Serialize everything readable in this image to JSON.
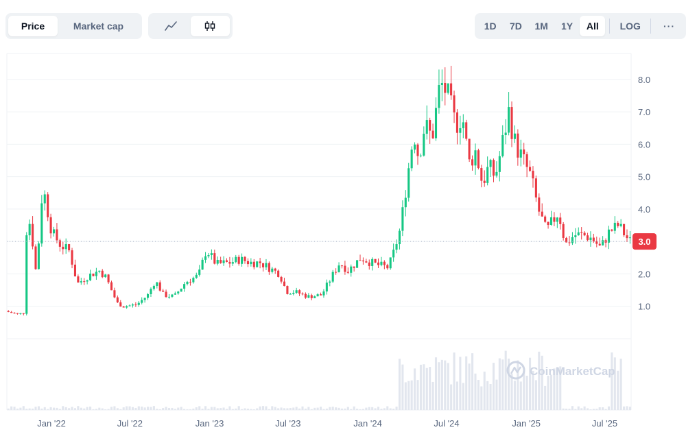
{
  "controls": {
    "metric_tabs": [
      {
        "label": "Price",
        "active": true
      },
      {
        "label": "Market cap",
        "active": false
      }
    ],
    "chart_types": [
      {
        "icon": "line-chart-icon",
        "active": false
      },
      {
        "icon": "candlestick-icon",
        "active": true
      }
    ],
    "ranges": [
      {
        "label": "1D",
        "active": false
      },
      {
        "label": "7D",
        "active": false
      },
      {
        "label": "1M",
        "active": false
      },
      {
        "label": "1Y",
        "active": false
      },
      {
        "label": "All",
        "active": true
      }
    ],
    "log_label": "LOG",
    "more_label": "···"
  },
  "watermark": "CoinMarketCap",
  "colors": {
    "up": "#16c784",
    "down": "#ea3943",
    "grid": "#eff2f5",
    "volume": "#e2e6ee",
    "text": "#58667e"
  },
  "chart_data": {
    "type": "candlestick",
    "current_price": 3.0,
    "current_price_label": "3.0",
    "y_ticks": [
      "1.0",
      "2.0",
      "3.0",
      "4.0",
      "5.0",
      "6.0",
      "7.0",
      "8.0"
    ],
    "ylim": [
      0,
      8.8
    ],
    "x_ticks": [
      {
        "date": "2022-01-01",
        "label": "Jan '22"
      },
      {
        "date": "2022-07-01",
        "label": "Jul '22"
      },
      {
        "date": "2023-01-01",
        "label": "Jan '23"
      },
      {
        "date": "2023-07-01",
        "label": "Jul '23"
      },
      {
        "date": "2024-01-01",
        "label": "Jan '24"
      },
      {
        "date": "2024-07-01",
        "label": "Jul '24"
      },
      {
        "date": "2025-01-01",
        "label": "Jan '25"
      },
      {
        "date": "2025-07-01",
        "label": "Jul '25"
      }
    ],
    "x_start": "2021-09-20",
    "x_end": "2025-08-31",
    "price_keypoints": [
      [
        "2021-09-20",
        0.85
      ],
      [
        "2021-10-20",
        0.75
      ],
      [
        "2021-11-01",
        0.8
      ],
      [
        "2021-11-05",
        3.0
      ],
      [
        "2021-11-12",
        3.8
      ],
      [
        "2021-11-20",
        3.2
      ],
      [
        "2021-12-01",
        1.9
      ],
      [
        "2021-12-12",
        4.3
      ],
      [
        "2021-12-20",
        4.4
      ],
      [
        "2022-01-05",
        3.3
      ],
      [
        "2022-01-25",
        2.9
      ],
      [
        "2022-02-15",
        2.7
      ],
      [
        "2022-03-05",
        1.7
      ],
      [
        "2022-04-01",
        1.95
      ],
      [
        "2022-04-25",
        2.1
      ],
      [
        "2022-05-10",
        1.9
      ],
      [
        "2022-06-05",
        1.1
      ],
      [
        "2022-06-20",
        1.0
      ],
      [
        "2022-07-20",
        1.05
      ],
      [
        "2022-08-15",
        1.35
      ],
      [
        "2022-09-01",
        1.8
      ],
      [
        "2022-09-20",
        1.35
      ],
      [
        "2022-10-15",
        1.3
      ],
      [
        "2022-11-10",
        1.75
      ],
      [
        "2022-12-10",
        1.95
      ],
      [
        "2022-12-28",
        2.75
      ],
      [
        "2023-01-20",
        2.3
      ],
      [
        "2023-02-20",
        2.35
      ],
      [
        "2023-03-15",
        2.45
      ],
      [
        "2023-04-10",
        2.35
      ],
      [
        "2023-05-01",
        2.35
      ],
      [
        "2023-05-20",
        2.2
      ],
      [
        "2023-06-15",
        2.0
      ],
      [
        "2023-07-01",
        1.45
      ],
      [
        "2023-07-20",
        1.45
      ],
      [
        "2023-08-20",
        1.3
      ],
      [
        "2023-09-20",
        1.35
      ],
      [
        "2023-10-15",
        1.95
      ],
      [
        "2023-11-01",
        2.35
      ],
      [
        "2023-11-20",
        2.1
      ],
      [
        "2023-12-20",
        2.5
      ],
      [
        "2024-01-20",
        2.3
      ],
      [
        "2024-02-20",
        2.2
      ],
      [
        "2024-03-01",
        2.5
      ],
      [
        "2024-03-20",
        3.4
      ],
      [
        "2024-04-05",
        5.0
      ],
      [
        "2024-04-20",
        6.4
      ],
      [
        "2024-05-01",
        5.6
      ],
      [
        "2024-05-15",
        6.6
      ],
      [
        "2024-06-01",
        6.2
      ],
      [
        "2024-06-20",
        7.9
      ],
      [
        "2024-07-05",
        7.6
      ],
      [
        "2024-07-25",
        6.6
      ],
      [
        "2024-08-10",
        6.9
      ],
      [
        "2024-08-25",
        5.4
      ],
      [
        "2024-09-10",
        5.8
      ],
      [
        "2024-09-25",
        4.8
      ],
      [
        "2024-10-10",
        5.3
      ],
      [
        "2024-10-25",
        5.0
      ],
      [
        "2024-11-10",
        6.0
      ],
      [
        "2024-11-25",
        7.0
      ],
      [
        "2024-12-10",
        6.0
      ],
      [
        "2024-12-25",
        5.6
      ],
      [
        "2025-01-15",
        5.0
      ],
      [
        "2025-02-01",
        4.0
      ],
      [
        "2025-02-20",
        3.3
      ],
      [
        "2025-03-05",
        3.6
      ],
      [
        "2025-03-20",
        3.9
      ],
      [
        "2025-04-05",
        2.9
      ],
      [
        "2025-04-25",
        3.2
      ],
      [
        "2025-05-15",
        3.2
      ],
      [
        "2025-06-05",
        3.1
      ],
      [
        "2025-06-25",
        2.8
      ],
      [
        "2025-07-15",
        3.3
      ],
      [
        "2025-08-05",
        3.5
      ],
      [
        "2025-08-31",
        3.0
      ]
    ]
  }
}
